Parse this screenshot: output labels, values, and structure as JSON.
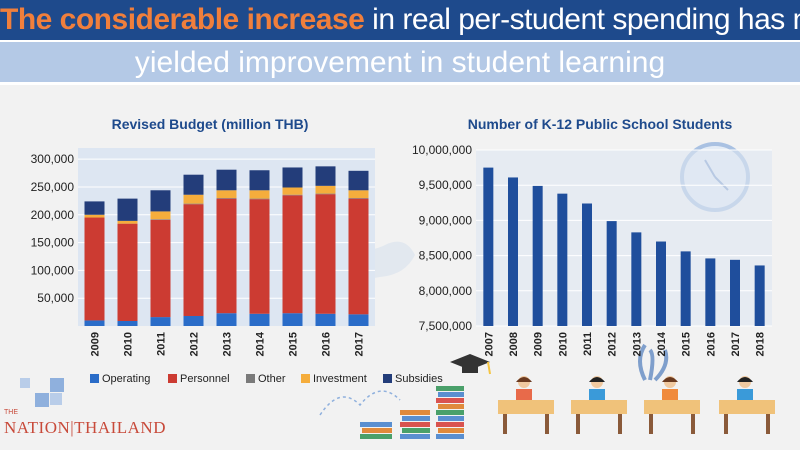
{
  "header": {
    "title_highlight": "The considerable increase",
    "title_rest": " in real per-student spending has not",
    "title_line2": "yielded improvement in student learning"
  },
  "colors": {
    "banner": "#1e4a8c",
    "highlight": "#f07f3c",
    "band": "#b4c9e6",
    "bar_blue": "#1f4e9c"
  },
  "logo": {
    "text": "NATION|THAILAND",
    "prefix": "THE"
  },
  "chart_data": [
    {
      "type": "bar",
      "stacked": true,
      "title": "Revised Budget (million THB)",
      "categories": [
        "2009",
        "2010",
        "2011",
        "2012",
        "2013",
        "2014",
        "2015",
        "2016",
        "2017"
      ],
      "series": [
        {
          "name": "Operating",
          "color": "#2a6cc8",
          "values": [
            10000,
            9000,
            16000,
            18000,
            23000,
            22000,
            23000,
            22000,
            21000
          ]
        },
        {
          "name": "Personnel",
          "color": "#cc3b32",
          "values": [
            185000,
            175000,
            175000,
            201000,
            206000,
            206000,
            212000,
            215000,
            208000
          ]
        },
        {
          "name": "Other",
          "color": "#7a7a7a",
          "values": [
            0,
            0,
            1000,
            1000,
            1000,
            1000,
            1000,
            1000,
            1000
          ]
        },
        {
          "name": "Investment",
          "color": "#f5ad3c",
          "values": [
            5000,
            5000,
            14000,
            16000,
            14000,
            15000,
            13000,
            14000,
            14000
          ]
        },
        {
          "name": "Subsidies",
          "color": "#233d7a",
          "values": [
            24000,
            40000,
            38000,
            36000,
            37000,
            36000,
            36000,
            35000,
            35000
          ]
        }
      ],
      "ylim": [
        0,
        320000
      ],
      "yticks": [
        "50,000",
        "100,000",
        "150,000",
        "200,000",
        "250,000",
        "300,000"
      ],
      "ytick_values": [
        50000,
        100000,
        150000,
        200000,
        250000,
        300000
      ],
      "legend_position": "bottom",
      "grid": true
    },
    {
      "type": "bar",
      "title": "Number of K-12 Public School Students",
      "categories": [
        "2007",
        "2008",
        "2009",
        "2010",
        "2011",
        "2012",
        "2013",
        "2014",
        "2015",
        "2016",
        "2017",
        "2018"
      ],
      "values": [
        9750000,
        9610000,
        9490000,
        9380000,
        9240000,
        8990000,
        8830000,
        8700000,
        8560000,
        8460000,
        8440000,
        8360000
      ],
      "color": "#1f4e9c",
      "ylim": [
        7500000,
        10000000
      ],
      "yticks": [
        "7,500,000",
        "8,000,000",
        "8,500,000",
        "9,000,000",
        "9,500,000",
        "10,000,000"
      ],
      "ytick_values": [
        7500000,
        8000000,
        8500000,
        9000000,
        9500000,
        10000000
      ],
      "grid": true
    }
  ]
}
